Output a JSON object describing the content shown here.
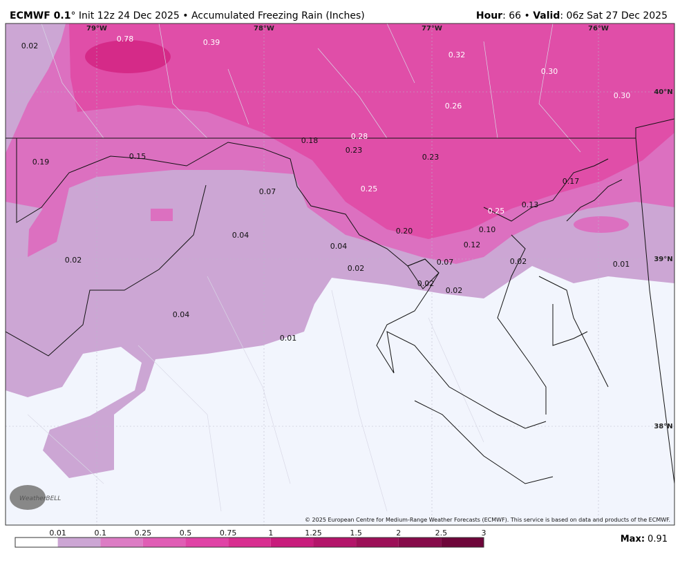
{
  "header": {
    "model": "ECMWF 0.1",
    "rest": "° Init 12z 24 Dec 2025 • Accumulated Freezing Rain (Inches)",
    "hour_label": "Hour",
    "hour_value": ": 66 • ",
    "valid_label": "Valid",
    "valid_value": ": 06z Sat 27 Dec 2025"
  },
  "map": {
    "contour_labels": [
      "0.02",
      "0.78",
      "0.39",
      "0.32",
      "0.30",
      "0.26",
      "0.30",
      "0.28",
      "0.18",
      "0.23",
      "0.19",
      "0.15",
      "0.23",
      "0.17",
      "0.07",
      "0.25",
      "0.25",
      "0.13",
      "0.10",
      "0.20",
      "0.04",
      "0.04",
      "0.12",
      "0.02",
      "0.02",
      "0.07",
      "0.02",
      "0.01",
      "0.02",
      "0.02",
      "0.04",
      "0.01"
    ],
    "longitudes": [
      "79°W",
      "78°W",
      "77°W",
      "76°W"
    ],
    "latitudes": [
      "40°N",
      "39°N",
      "38°N"
    ],
    "logo": "WeatherBELL",
    "copyright": "© 2025 European Centre for Medium-Range Weather Forecasts (ECMWF). This service is based on data and products of the ECMWF."
  },
  "colorbar": {
    "ticks": [
      "0.01",
      "0.1",
      "0.25",
      "0.5",
      "0.75",
      "1",
      "1.25",
      "1.5",
      "2",
      "2.5",
      "3"
    ],
    "colors": [
      "#ffffff",
      "#cca6d4",
      "#dc7cc4",
      "#e05db5",
      "#e043a6",
      "#d82e90",
      "#c81c7c",
      "#b3156a",
      "#9c1058",
      "#860b4a",
      "#6e063a"
    ]
  },
  "max": {
    "label": "Max:",
    "value": "0.91"
  }
}
